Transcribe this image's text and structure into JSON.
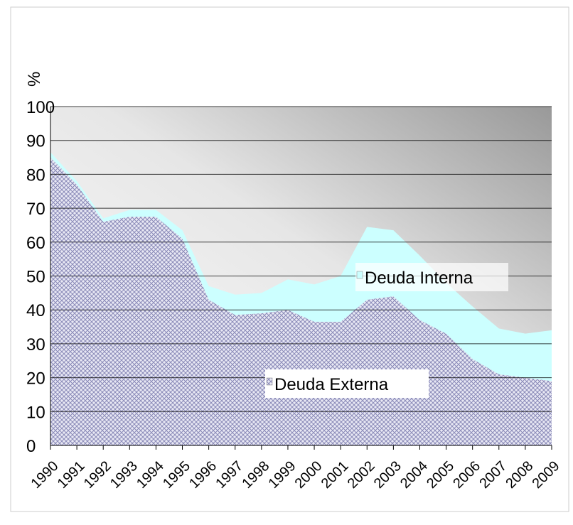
{
  "chart_data": {
    "type": "area",
    "stacked": true,
    "y_label": "%",
    "categories": [
      "1990",
      "1991",
      "1992",
      "1993",
      "1994",
      "1995",
      "1996",
      "1997",
      "1998",
      "1999",
      "2000",
      "2001",
      "2002",
      "2003",
      "2004",
      "2005",
      "2006",
      "2007",
      "2008",
      "2009"
    ],
    "series": [
      {
        "name": "Deuda Externa",
        "color": "#9a9acc",
        "values": [
          85,
          77,
          66,
          67.5,
          67.5,
          61,
          43,
          38.5,
          39,
          40,
          36.5,
          36.5,
          43,
          44,
          37,
          33,
          25.5,
          21,
          20,
          19
        ]
      },
      {
        "name": "Deuda Interna",
        "color": "#ccffff",
        "values": [
          1.5,
          1,
          1,
          2,
          2,
          2.5,
          4,
          6,
          6,
          9,
          11,
          13.5,
          21.5,
          19.5,
          19,
          15,
          15.5,
          13.5,
          13,
          15
        ]
      }
    ],
    "ylim": [
      0,
      100
    ],
    "yticks": [
      0,
      10,
      20,
      30,
      40,
      50,
      60,
      70,
      80,
      90,
      100
    ],
    "grid": true
  }
}
